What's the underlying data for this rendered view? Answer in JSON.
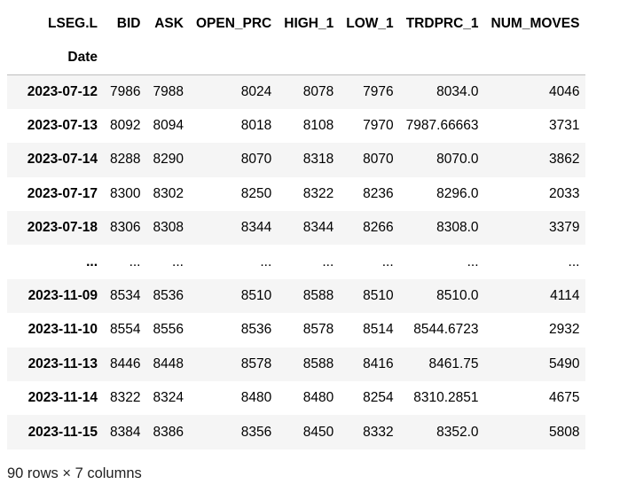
{
  "table": {
    "columns_name": "LSEG.L",
    "index_name": "Date",
    "columns": [
      "BID",
      "ASK",
      "OPEN_PRC",
      "HIGH_1",
      "LOW_1",
      "TRDPRC_1",
      "NUM_MOVES"
    ],
    "rows": [
      {
        "date": "2023-07-12",
        "cells": [
          "7986",
          "7988",
          "8024",
          "8078",
          "7976",
          "8034.0",
          "4046"
        ]
      },
      {
        "date": "2023-07-13",
        "cells": [
          "8092",
          "8094",
          "8018",
          "8108",
          "7970",
          "7987.66663",
          "3731"
        ]
      },
      {
        "date": "2023-07-14",
        "cells": [
          "8288",
          "8290",
          "8070",
          "8318",
          "8070",
          "8070.0",
          "3862"
        ]
      },
      {
        "date": "2023-07-17",
        "cells": [
          "8300",
          "8302",
          "8250",
          "8322",
          "8236",
          "8296.0",
          "2033"
        ]
      },
      {
        "date": "2023-07-18",
        "cells": [
          "8306",
          "8308",
          "8344",
          "8344",
          "8266",
          "8308.0",
          "3379"
        ]
      },
      {
        "date": "...",
        "cells": [
          "...",
          "...",
          "...",
          "...",
          "...",
          "...",
          "..."
        ]
      },
      {
        "date": "2023-11-09",
        "cells": [
          "8534",
          "8536",
          "8510",
          "8588",
          "8510",
          "8510.0",
          "4114"
        ]
      },
      {
        "date": "2023-11-10",
        "cells": [
          "8554",
          "8556",
          "8536",
          "8578",
          "8514",
          "8544.6723",
          "2932"
        ]
      },
      {
        "date": "2023-11-13",
        "cells": [
          "8446",
          "8448",
          "8578",
          "8588",
          "8416",
          "8461.75",
          "5490"
        ]
      },
      {
        "date": "2023-11-14",
        "cells": [
          "8322",
          "8324",
          "8480",
          "8480",
          "8254",
          "8310.2851",
          "4675"
        ]
      },
      {
        "date": "2023-11-15",
        "cells": [
          "8384",
          "8386",
          "8356",
          "8450",
          "8332",
          "8352.0",
          "5808"
        ]
      }
    ]
  },
  "shape_text": "90 rows × 7 columns"
}
